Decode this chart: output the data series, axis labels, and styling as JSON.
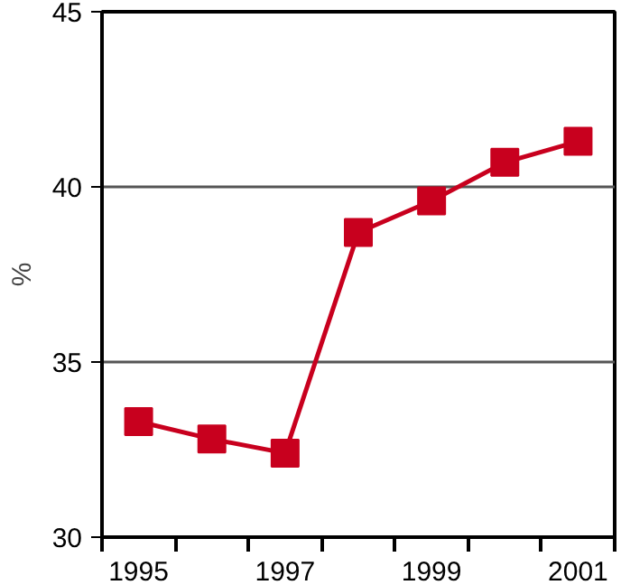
{
  "chart_data": {
    "type": "line",
    "ylabel": "%",
    "x": [
      1995,
      1996,
      1997,
      1998,
      1999,
      2000,
      2001
    ],
    "series": [
      {
        "color": "#c8001e",
        "values": [
          33.3,
          32.8,
          32.4,
          38.7,
          39.6,
          40.7,
          41.3
        ]
      }
    ],
    "xlim": [
      1994.5,
      2001.5
    ],
    "xticks": [
      1995,
      1997,
      1999,
      2001
    ],
    "ylim": [
      30,
      45
    ],
    "yticks": [
      30,
      35,
      40,
      45
    ],
    "grid": "y",
    "marker": "square",
    "line_style": "solid"
  }
}
